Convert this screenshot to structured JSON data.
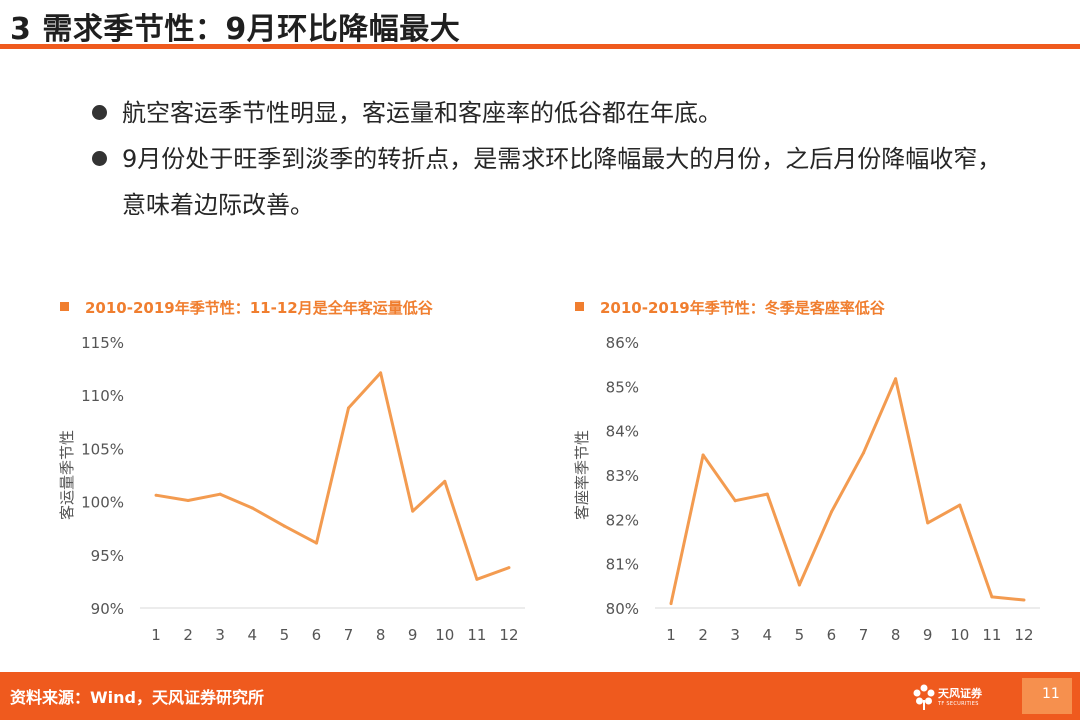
{
  "header": {
    "title": "3 需求季节性：9月环比降幅最大"
  },
  "bullets": [
    "航空客运季节性明显，客运量和客座率的低谷都在年底。",
    "9月份处于旺季到淡季的转折点，是需求环比降幅最大的月份，之后月份降幅收窄，意味着边际改善。"
  ],
  "colors": {
    "accent": "#ef5a1e",
    "series": "#f39b50",
    "heading": "#f07e2f"
  },
  "chart_data": [
    {
      "type": "line",
      "title": "2010-2019年季节性：11-12月是全年客运量低谷",
      "xlabel": "",
      "ylabel": "客运量季节性",
      "x": [
        "1",
        "2",
        "3",
        "4",
        "5",
        "6",
        "7",
        "8",
        "9",
        "10",
        "11",
        "12"
      ],
      "series": [
        {
          "values": [
            100.6,
            100.1,
            100.7,
            99.4,
            97.7,
            96.1,
            108.8,
            112.1,
            99.1,
            101.9,
            92.7,
            93.8
          ]
        }
      ],
      "ylim": [
        90,
        115
      ],
      "yticks": [
        90,
        95,
        100,
        105,
        110,
        115
      ],
      "ytick_labels": [
        "90%",
        "95%",
        "100%",
        "105%",
        "110%",
        "115%"
      ],
      "grid": false,
      "legend": "none"
    },
    {
      "type": "line",
      "title": "2010-2019年季节性：冬季是客座率低谷",
      "xlabel": "",
      "ylabel": "客座率季节性",
      "x": [
        "1",
        "2",
        "3",
        "4",
        "5",
        "6",
        "7",
        "8",
        "9",
        "10",
        "11",
        "12"
      ],
      "series": [
        {
          "values": [
            80.1,
            83.45,
            82.42,
            82.57,
            80.52,
            82.17,
            83.5,
            85.17,
            81.92,
            82.32,
            80.25,
            80.18
          ]
        }
      ],
      "ylim": [
        80,
        86
      ],
      "yticks": [
        80,
        81,
        82,
        83,
        84,
        85,
        86
      ],
      "ytick_labels": [
        "80%",
        "81%",
        "82%",
        "83%",
        "84%",
        "85%",
        "86%"
      ],
      "grid": false,
      "legend": "none"
    }
  ],
  "footer": {
    "source": "资料来源：Wind，天风证券研究所",
    "logo_cn": "天风证券",
    "logo_en": "TF SECURITIES",
    "page_number": "11"
  }
}
